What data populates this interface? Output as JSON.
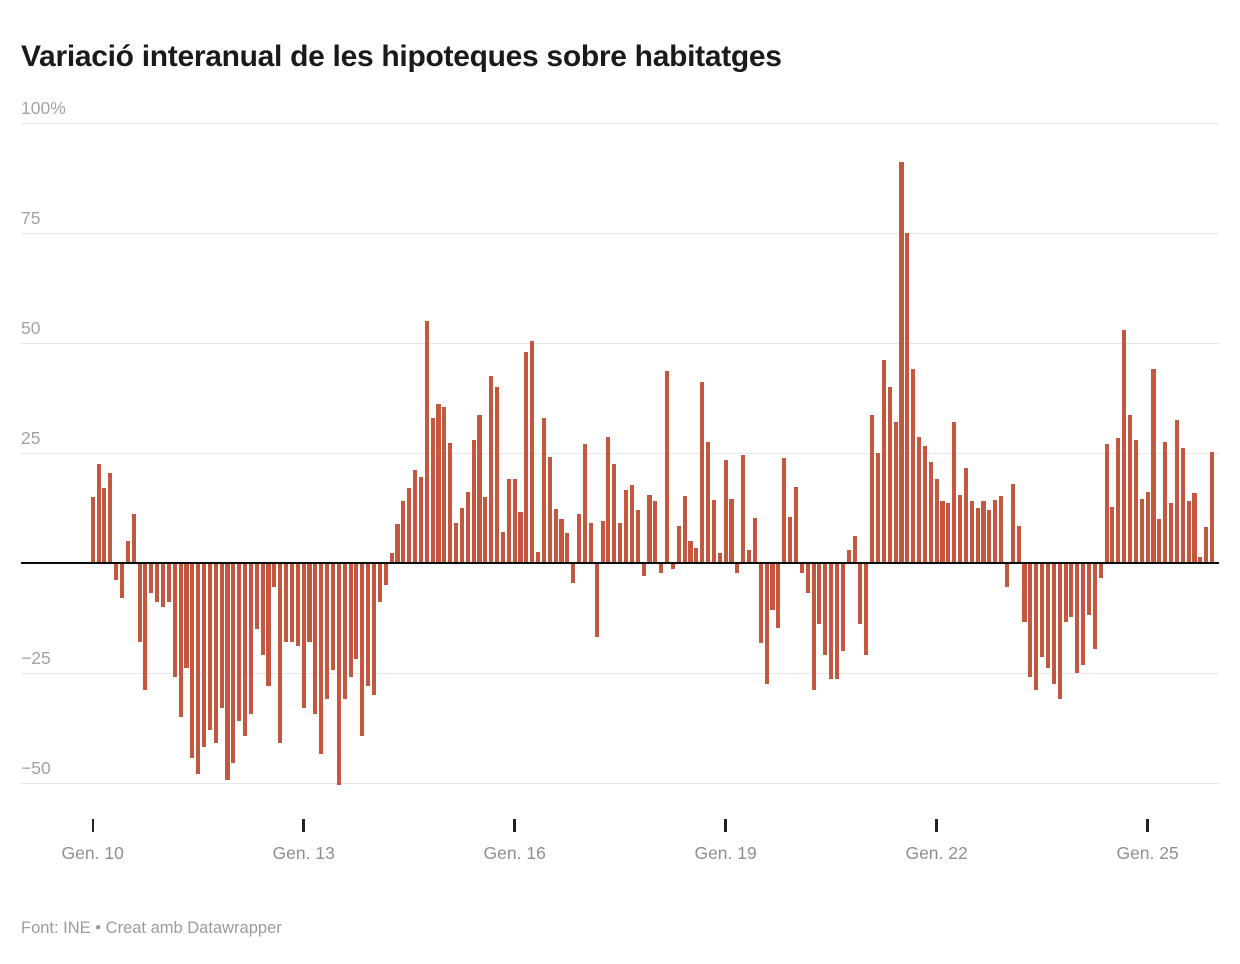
{
  "title": "Variació interanual de les hipoteques sobre habitatges",
  "footer": {
    "source_label": "Font: INE",
    "separator": " • ",
    "attribution": "Creat amb Datawrapper"
  },
  "colors": {
    "bar": "#c4583e",
    "grid": "#e7e7e7",
    "zero_line": "#0b0b0b",
    "title_text": "#1a1a1a",
    "axis_text": "#9b9b9b"
  },
  "y_axis": {
    "labels": [
      {
        "value": 100,
        "label": "100%"
      },
      {
        "value": 75,
        "label": "75"
      },
      {
        "value": 50,
        "label": "50"
      },
      {
        "value": 25,
        "label": "25"
      },
      {
        "value": -25,
        "label": "−25"
      },
      {
        "value": -50,
        "label": "−50"
      }
    ]
  },
  "x_axis": {
    "ticks": [
      {
        "label": "Gen. 10",
        "month_index": 0
      },
      {
        "label": "Gen. 13",
        "month_index": 36
      },
      {
        "label": "Gen. 16",
        "month_index": 72
      },
      {
        "label": "Gen. 19",
        "month_index": 108
      },
      {
        "label": "Gen. 22",
        "month_index": 144
      },
      {
        "label": "Gen. 25",
        "month_index": 180
      }
    ]
  },
  "chart_data": {
    "type": "bar",
    "title": "Variació interanual de les hipoteques sobre habitatges",
    "source": "INE",
    "unit": "%",
    "frequency": "monthly",
    "x_start": "Gen. 2010",
    "ylim": [
      -60,
      100
    ],
    "grid": true,
    "values": [
      15,
      22.5,
      17,
      20.5,
      -4,
      -8,
      5,
      11,
      -18,
      -29,
      -7,
      -9,
      -10,
      -9,
      -26,
      -35,
      -24,
      -44.5,
      -48,
      -42,
      -38,
      -41,
      -33,
      -49.5,
      -45.5,
      -36,
      -39.5,
      -34.5,
      -15,
      -21,
      -28,
      -5.5,
      -41,
      -18,
      -18,
      -19,
      -33,
      -18,
      -34.5,
      -43.5,
      -31,
      -24.5,
      -50.5,
      -31,
      -26,
      -22,
      -39.5,
      -28,
      -30,
      -9,
      -5,
      2.3,
      8.7,
      14,
      17,
      21,
      19.5,
      55,
      33,
      36,
      35.5,
      27.3,
      9,
      12.5,
      16,
      28,
      33.5,
      15,
      42.5,
      40,
      7,
      19,
      19,
      11.5,
      48,
      50.5,
      2.5,
      33,
      24,
      12.3,
      10,
      6.7,
      -4.7,
      11,
      27,
      9,
      -17,
      9.5,
      28.5,
      22.5,
      9,
      16.5,
      17.7,
      12,
      -3,
      15.5,
      14,
      -2.4,
      43.5,
      -1.5,
      8.4,
      15.2,
      4.9,
      3.3,
      41,
      27.5,
      14.2,
      2.3,
      23.3,
      14.6,
      -2.3,
      24.5,
      2.9,
      10.2,
      -18.3,
      -27.6,
      -10.8,
      -14.9,
      23.7,
      10.5,
      17.3,
      -2.4,
      -7,
      -29,
      -14,
      -21,
      -26.5,
      -26.5,
      -20,
      3,
      6,
      -14,
      -21,
      33.5,
      25,
      46,
      40,
      32,
      91,
      75,
      44,
      28.5,
      26.5,
      23,
      19,
      14,
      13.5,
      32,
      15.5,
      21.5,
      14,
      12.5,
      14,
      12,
      14.2,
      15.2,
      -5.5,
      18,
      8.3,
      -13.4,
      -26,
      -29,
      -21.5,
      -24,
      -27.5,
      -31,
      -13.6,
      -12.3,
      -25,
      -23.3,
      -12,
      -19.7,
      -3.6,
      27,
      12.7,
      28.3,
      53,
      33.6,
      28,
      14.6,
      16.1,
      44,
      10,
      27.5,
      13.5,
      32.4,
      26,
      14,
      15.8,
      1.4,
      8.2,
      25.2
    ]
  }
}
